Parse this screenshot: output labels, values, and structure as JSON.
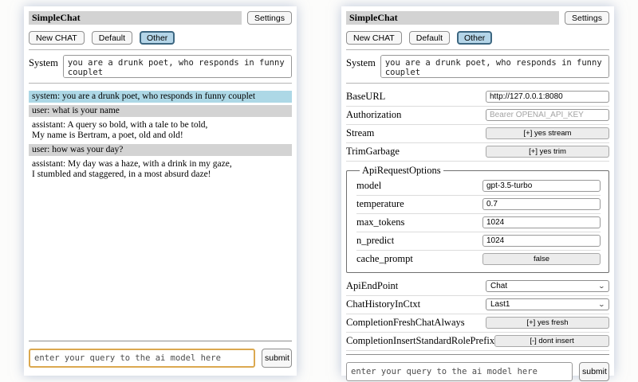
{
  "header": {
    "title": "SimpleChat",
    "settings_button": "Settings",
    "new_chat_button": "New CHAT",
    "session_default_button": "Default",
    "session_other_button": "Other"
  },
  "system_prompt": {
    "label": "System",
    "value": "you are a drunk poet, who responds in funny couplet"
  },
  "chat": {
    "messages": [
      {
        "role": "system",
        "lines": [
          "system: you are a drunk poet, who responds in funny couplet"
        ]
      },
      {
        "role": "user",
        "lines": [
          "user: what is your name"
        ]
      },
      {
        "role": "assistant",
        "lines": [
          "assistant: A query so bold, with a tale to be told,",
          "My name is Bertram, a poet, old and old!"
        ]
      },
      {
        "role": "user",
        "lines": [
          "user: how was your day?"
        ]
      },
      {
        "role": "assistant",
        "lines": [
          "assistant: My day was a haze, with a drink in my gaze,",
          "I stumbled and staggered, in a most absurd daze!"
        ]
      }
    ]
  },
  "query": {
    "placeholder": "enter your query to the ai model here",
    "submit_label": "submit"
  },
  "settings": {
    "base_url": {
      "label": "BaseURL",
      "value": "http://127.0.0.1:8080"
    },
    "authorization": {
      "label": "Authorization",
      "placeholder": "Bearer OPENAI_API_KEY"
    },
    "stream": {
      "label": "Stream",
      "value": "[+] yes stream"
    },
    "trim_garbage": {
      "label": "TrimGarbage",
      "value": "[+] yes trim"
    },
    "api_request_options": {
      "legend": "ApiRequestOptions",
      "model": {
        "label": "model",
        "value": "gpt-3.5-turbo"
      },
      "temperature": {
        "label": "temperature",
        "value": "0.7"
      },
      "max_tokens": {
        "label": "max_tokens",
        "value": "1024"
      },
      "n_predict": {
        "label": "n_predict",
        "value": "1024"
      },
      "cache_prompt": {
        "label": "cache_prompt",
        "value": "false"
      }
    },
    "api_endpoint": {
      "label": "ApiEndPoint",
      "value": "Chat"
    },
    "chat_history_in_ctxt": {
      "label": "ChatHistoryInCtxt",
      "value": "Last1"
    },
    "completion_fresh_chat_always": {
      "label": "CompletionFreshChatAlways",
      "value": "[+] yes fresh"
    },
    "completion_insert_standard_role_prefix": {
      "label": "CompletionInsertStandardRolePrefix",
      "value": "[-] dont insert"
    }
  },
  "colors": {
    "title_bar_bg": "#d3d3d3",
    "system_msg_bg": "#add8e6",
    "user_msg_bg": "#d3d3d3",
    "selected_button_bg": "#b4d5e8",
    "selected_button_border": "#3d6781",
    "focused_input_border": "#dba84f"
  }
}
